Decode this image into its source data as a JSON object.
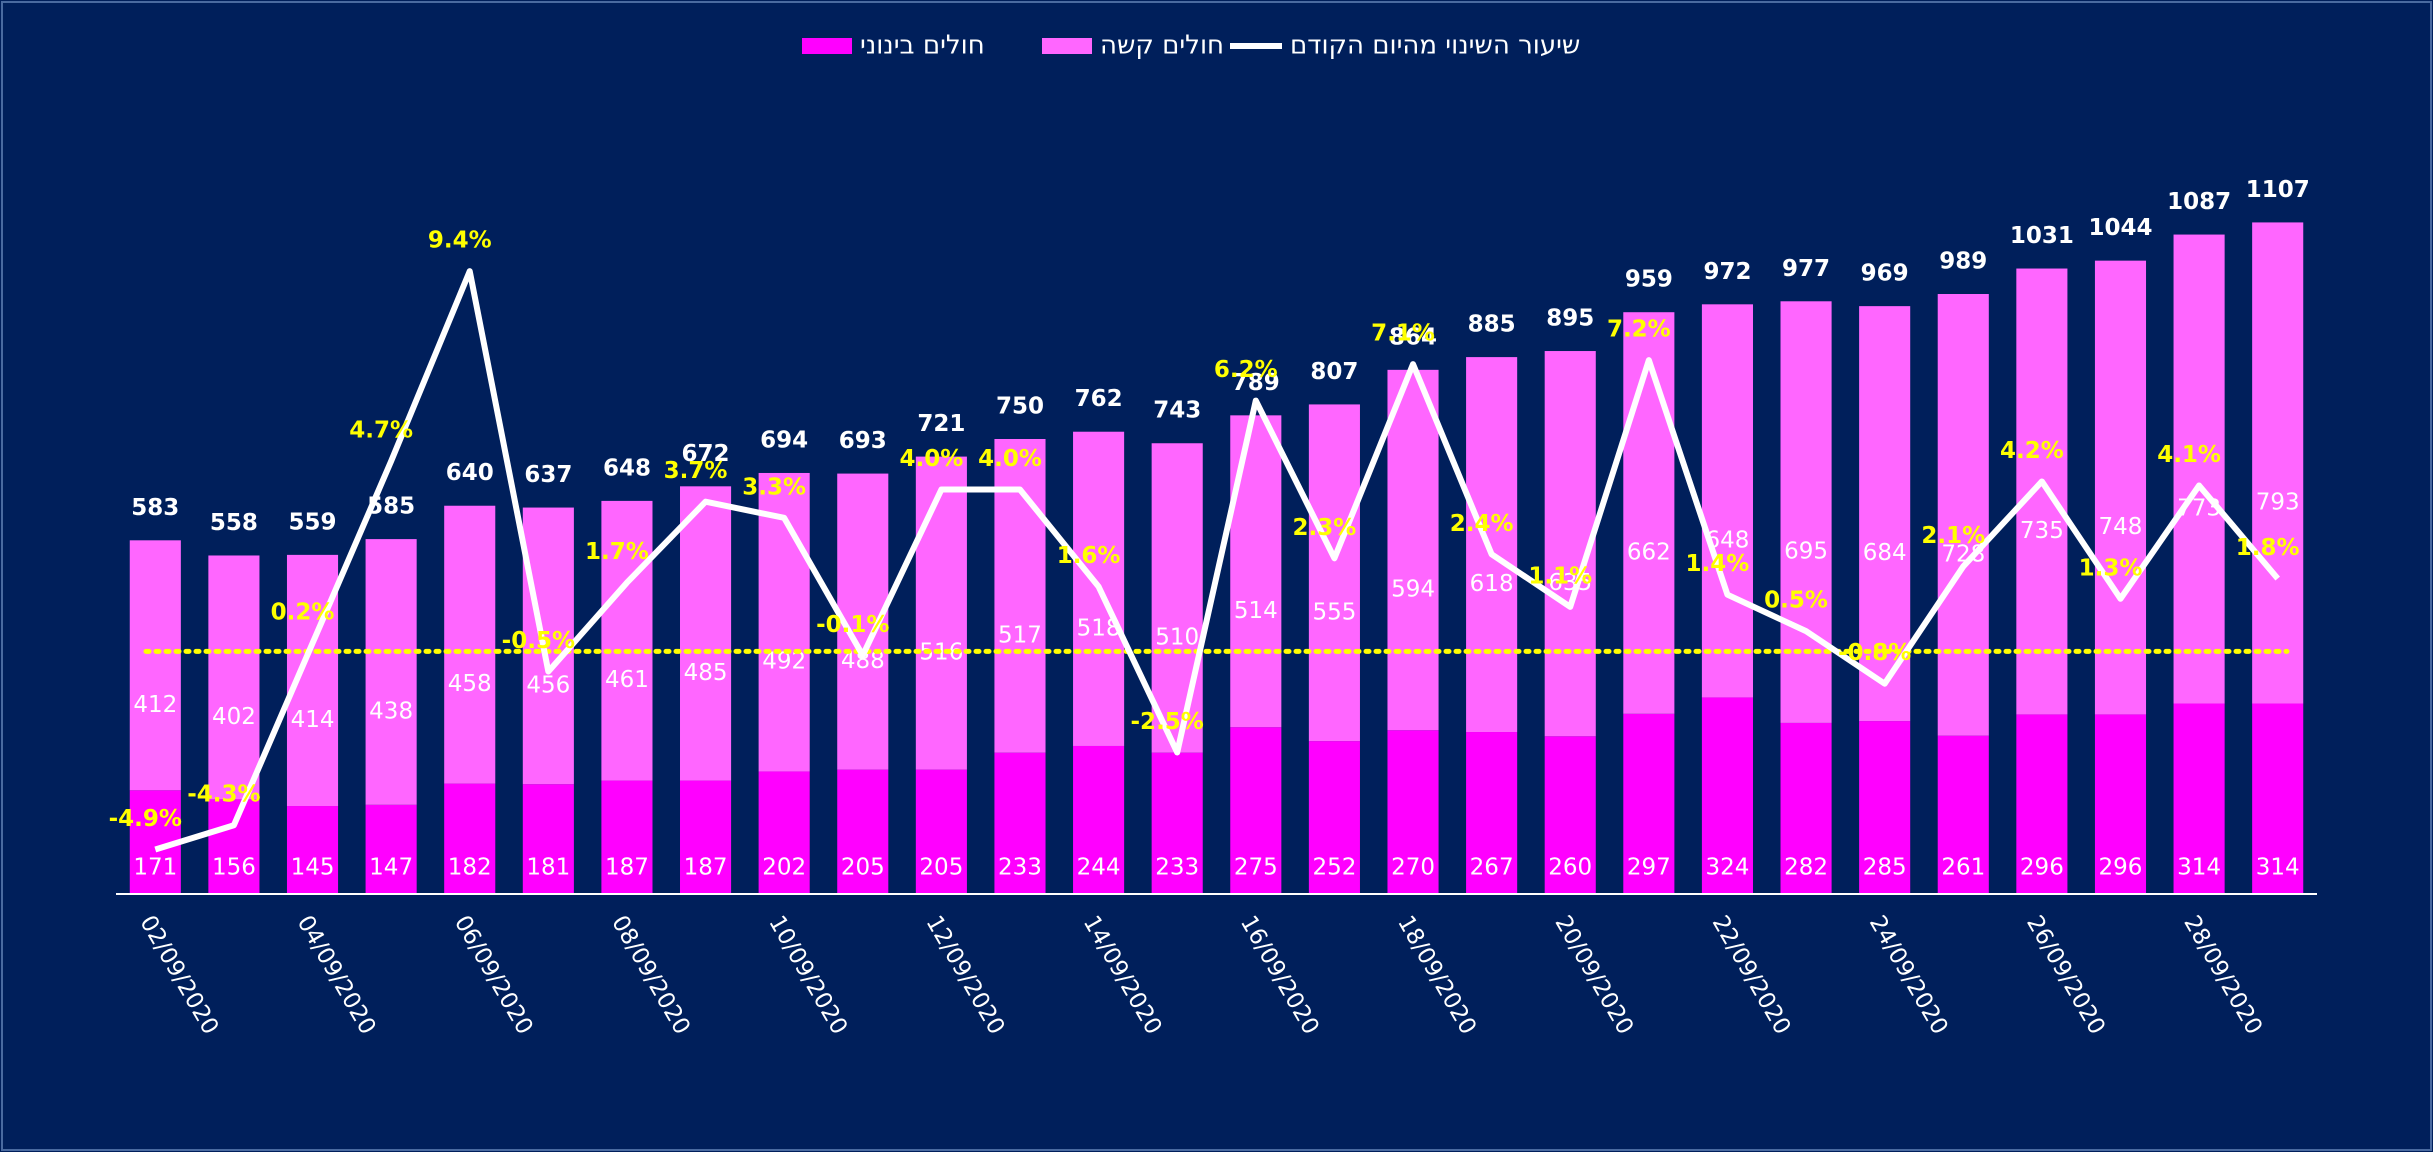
{
  "chart_data": {
    "type": "bar",
    "categories": [
      "02/09/2020",
      null,
      "04/09/2020",
      null,
      "06/09/2020",
      null,
      "08/09/2020",
      null,
      "10/09/2020",
      null,
      "12/09/2020",
      null,
      "14/09/2020",
      null,
      "16/09/2020",
      null,
      "18/09/2020",
      null,
      "20/09/2020",
      null,
      "22/09/2020",
      null,
      "24/09/2020",
      null,
      "26/09/2020",
      null,
      "28/09/2020",
      null
    ],
    "series": [
      {
        "name": "חולים בינוני",
        "color": "#ff00ff",
        "values": [
          171,
          156,
          145,
          147,
          182,
          181,
          187,
          187,
          202,
          205,
          205,
          233,
          244,
          233,
          275,
          252,
          270,
          267,
          260,
          297,
          324,
          282,
          285,
          261,
          296,
          296,
          314,
          314
        ]
      },
      {
        "name": "חולים קשה",
        "color": "#ff66ff",
        "values": [
          412,
          402,
          414,
          438,
          458,
          456,
          461,
          485,
          492,
          488,
          516,
          517,
          518,
          510,
          514,
          555,
          594,
          618,
          635,
          662,
          648,
          695,
          684,
          728,
          735,
          748,
          773,
          793
        ]
      },
      {
        "name": "שיעור השינוי מהיום הקודם",
        "color": "#ffffff",
        "axis": "y2",
        "type": "line",
        "values": [
          -4.9,
          -4.3,
          0.2,
          4.7,
          9.4,
          -0.5,
          1.7,
          3.7,
          3.3,
          -0.1,
          4.0,
          4.0,
          1.6,
          -2.5,
          6.2,
          2.3,
          7.1,
          2.4,
          1.1,
          7.2,
          1.4,
          0.5,
          -0.8,
          2.1,
          4.2,
          1.3,
          4.1,
          1.8
        ],
        "value_labels": [
          "-4.9%",
          "-4.3%",
          "0.2%",
          "4.7%",
          "9.4%",
          "-0.5%",
          "1.7%",
          "3.7%",
          "3.3%",
          "-0.1%",
          "4.0%",
          "4.0%",
          "1.6%",
          "-2.5%",
          "6.2%",
          "2.3%",
          "7.1%",
          "2.4%",
          "1.1%",
          "7.2%",
          "1.4%",
          "0.5%",
          "-0.8%",
          "2.1%",
          "4.2%",
          "1.3%",
          "4.1%",
          "1.8%"
        ]
      }
    ],
    "totals": [
      583,
      558,
      559,
      585,
      640,
      637,
      648,
      672,
      694,
      693,
      721,
      750,
      762,
      743,
      789,
      807,
      864,
      885,
      895,
      959,
      972,
      977,
      969,
      989,
      1031,
      1044,
      1087,
      1107
    ],
    "ylim": [
      0,
      1200
    ],
    "y2lim": [
      -6,
      12
    ],
    "zero_line_color": "#ffff00",
    "label_color": "#ffff00"
  }
}
